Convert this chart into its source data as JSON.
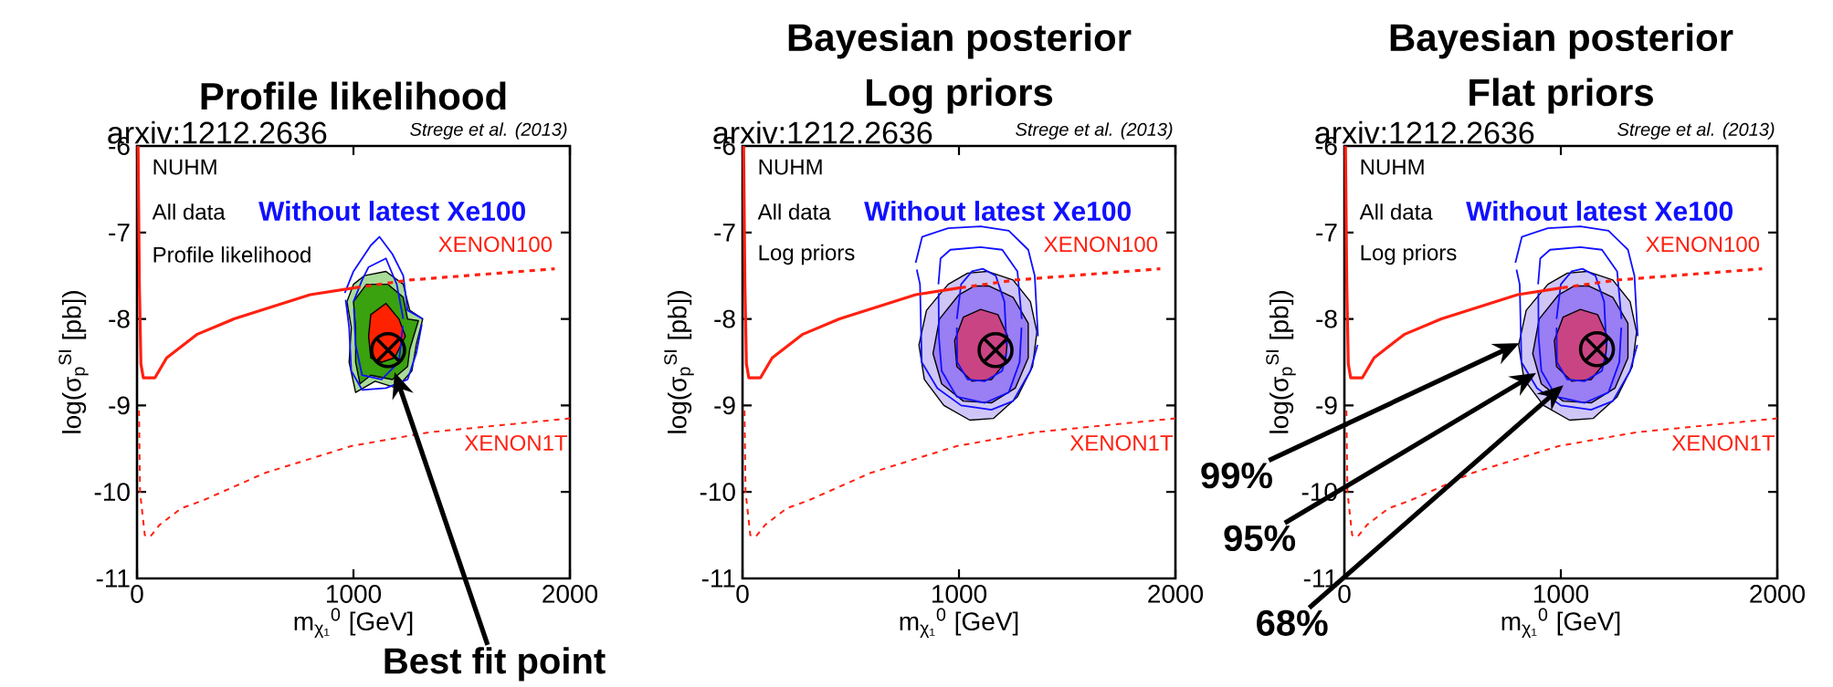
{
  "chart_data": [
    {
      "type": "line",
      "title": "Profile likelihood",
      "xlabel": "m$_{χ₁}$$^{0}$ [GeV]",
      "ylabel": "log(σ$_{p}$$^{SI}$ [pb])",
      "xlim": [
        0,
        2000
      ],
      "ylim": [
        -11,
        -6
      ],
      "xticks": [
        0,
        1000,
        2000
      ],
      "yticks": [
        -11,
        -10,
        -9,
        -8,
        -7,
        -6
      ],
      "series": [
        {
          "type": "area",
          "color": "#a9dc98",
          "x": [
            1050,
            1150,
            1230,
            1260,
            1320,
            1290,
            1270,
            1200,
            1100,
            1010,
            980,
            990,
            970,
            1000
          ],
          "values": [
            -7.5,
            -7.45,
            -7.6,
            -7.9,
            -8.0,
            -8.3,
            -8.6,
            -8.8,
            -8.72,
            -8.85,
            -8.5,
            -8.1,
            -7.8,
            -7.6
          ]
        },
        {
          "type": "area",
          "color": "#3aa10f",
          "x": [
            1060,
            1160,
            1230,
            1250,
            1300,
            1260,
            1250,
            1180,
            1080,
            1030,
            1010,
            1010,
            1000
          ],
          "values": [
            -7.6,
            -7.6,
            -7.75,
            -8.0,
            -8.02,
            -8.35,
            -8.55,
            -8.7,
            -8.65,
            -8.75,
            -8.5,
            -8.1,
            -7.8
          ]
        },
        {
          "type": "area",
          "color": "#ff2200",
          "x": [
            1080,
            1150,
            1210,
            1240,
            1190,
            1130,
            1080,
            1070
          ],
          "values": [
            -7.95,
            -7.82,
            -8.0,
            -8.2,
            -8.45,
            -8.5,
            -8.45,
            -8.2
          ]
        },
        {
          "color": "#1010ff",
          "x": [
            960,
            1000,
            1040,
            1080,
            1120,
            1180,
            1230,
            1250,
            1320
          ],
          "values": [
            -7.7,
            -7.45,
            -7.3,
            -7.15,
            -7.05,
            -7.25,
            -7.5,
            -7.9,
            -8.0
          ]
        },
        {
          "color": "#1010ff",
          "x": [
            964,
            980,
            990,
            1040,
            1150,
            1250,
            1290,
            1316
          ],
          "values": [
            -7.78,
            -8.1,
            -8.6,
            -8.82,
            -8.8,
            -8.7,
            -8.4,
            -8.06
          ]
        },
        {
          "color": "#1010ff",
          "x": [
            1000,
            1040,
            1070,
            1150,
            1200,
            1230
          ],
          "values": [
            -7.8,
            -7.55,
            -7.4,
            -7.3,
            -7.6,
            -8.0
          ]
        },
        {
          "color": "#1010ff",
          "x": [
            1002,
            1010,
            1040,
            1130,
            1210,
            1228
          ],
          "values": [
            -7.88,
            -8.3,
            -8.65,
            -8.7,
            -8.5,
            -8.08
          ]
        },
        {
          "color": "#ff2010",
          "line_style": "solid",
          "x": [
            5,
            11,
            18,
            29,
            50,
            83,
            137,
            276,
            448,
            800,
            1007
          ],
          "values": [
            -6.0,
            -7.6,
            -8.52,
            -8.68,
            -8.68,
            -8.68,
            -8.45,
            -8.18,
            -8.0,
            -7.72,
            -7.64
          ]
        },
        {
          "name": "XENON100",
          "color": "#ff2010",
          "line_style": "dashed",
          "x": [
            1007,
            1260,
            1930
          ],
          "values": [
            -7.64,
            -7.55,
            -7.42
          ]
        },
        {
          "name": "XENON1T",
          "color": "#ff2010",
          "line_style": "dashed",
          "x": [
            9,
            14,
            36,
            60,
            105,
            204,
            303,
            592,
            989,
            1350,
            2000
          ],
          "values": [
            -9.06,
            -10.0,
            -10.5,
            -10.52,
            -10.38,
            -10.19,
            -10.1,
            -9.78,
            -9.47,
            -9.31,
            -9.15
          ]
        },
        {
          "type": "scatter",
          "color": "#000000",
          "marker": "cross",
          "x": [
            1160
          ],
          "values": [
            -8.36
          ]
        }
      ],
      "annotations": [
        "arxiv:1212.2636",
        "Strege et al. (2013)",
        "NUHM",
        "All data",
        "Profile likelihood",
        "Without latest Xe100",
        "Best fit point"
      ]
    },
    {
      "type": "line",
      "title": "Bayesian posterior",
      "subtitle": "Log priors",
      "xlabel": "m$_{χ₁}$$^{0}$ [GeV]",
      "ylabel": "log(σ$_{p}$$^{SI}$ [pb])",
      "xlim": [
        0,
        2000
      ],
      "ylim": [
        -11,
        -6
      ],
      "xticks": [
        0,
        1000,
        2000
      ],
      "yticks": [
        -11,
        -10,
        -9,
        -8,
        -7,
        -6
      ],
      "series": [
        {
          "type": "area",
          "color": "#cfc6f7",
          "x": [
            1130,
            1250,
            1330,
            1360,
            1340,
            1270,
            1160,
            1050,
            930,
            840,
            815,
            850,
            950,
            1040
          ],
          "values": [
            -7.45,
            -7.55,
            -7.8,
            -8.15,
            -8.55,
            -8.9,
            -9.15,
            -9.17,
            -9.0,
            -8.7,
            -8.3,
            -7.9,
            -7.6,
            -7.47
          ]
        },
        {
          "type": "area",
          "color": "#9a7ef4",
          "x": [
            1140,
            1250,
            1320,
            1320,
            1260,
            1150,
            1020,
            920,
            880,
            910,
            1000,
            1070
          ],
          "values": [
            -7.62,
            -7.75,
            -8.05,
            -8.45,
            -8.8,
            -8.97,
            -8.95,
            -8.75,
            -8.4,
            -8.0,
            -7.72,
            -7.62
          ]
        },
        {
          "type": "area",
          "color": "#c94482",
          "x": [
            1100,
            1180,
            1225,
            1215,
            1150,
            1060,
            990,
            980,
            1020
          ],
          "values": [
            -7.89,
            -7.95,
            -8.2,
            -8.5,
            -8.7,
            -8.72,
            -8.55,
            -8.25,
            -7.98
          ]
        },
        {
          "color": "#1010ff",
          "x": [
            800,
            830,
            950,
            1100,
            1230,
            1320,
            1350,
            1365
          ],
          "values": [
            -7.35,
            -7.05,
            -6.95,
            -6.93,
            -6.98,
            -7.2,
            -7.5,
            -8.2
          ]
        },
        {
          "color": "#1010ff",
          "x": [
            805,
            820,
            828,
            900,
            1010,
            1150,
            1250,
            1330,
            1363
          ],
          "values": [
            -7.43,
            -7.6,
            -8.5,
            -8.8,
            -9.0,
            -9.05,
            -8.95,
            -8.6,
            -8.3
          ]
        },
        {
          "color": "#1010ff",
          "x": [
            905,
            915,
            960,
            1100,
            1200,
            1270,
            1290
          ],
          "values": [
            -7.6,
            -7.3,
            -7.2,
            -7.17,
            -7.2,
            -7.45,
            -8.0
          ]
        },
        {
          "color": "#1010ff",
          "x": [
            906,
            907,
            920,
            990,
            1120,
            1230,
            1280,
            1289
          ],
          "values": [
            -7.7,
            -8.2,
            -8.6,
            -8.9,
            -8.97,
            -8.85,
            -8.5,
            -8.1
          ]
        },
        {
          "color": "#1010ff",
          "x": [
            990,
            1010,
            1060,
            1110,
            1170,
            1210,
            1220
          ],
          "values": [
            -8.0,
            -7.6,
            -7.45,
            -7.42,
            -7.5,
            -7.8,
            -8.3
          ]
        },
        {
          "color": "#1010ff",
          "x": [
            990,
            992,
            1040,
            1120,
            1200,
            1218
          ],
          "values": [
            -8.1,
            -8.5,
            -8.7,
            -8.72,
            -8.6,
            -8.4
          ]
        },
        {
          "color": "#ff2010",
          "line_style": "solid",
          "x": [
            5,
            11,
            18,
            29,
            50,
            83,
            137,
            276,
            448,
            800,
            1007
          ],
          "values": [
            -6.0,
            -7.6,
            -8.52,
            -8.68,
            -8.68,
            -8.68,
            -8.45,
            -8.18,
            -8.0,
            -7.72,
            -7.64
          ]
        },
        {
          "name": "XENON100",
          "color": "#ff2010",
          "line_style": "dashed",
          "x": [
            1007,
            1260,
            1930
          ],
          "values": [
            -7.64,
            -7.55,
            -7.42
          ]
        },
        {
          "name": "XENON1T",
          "color": "#ff2010",
          "line_style": "dashed",
          "x": [
            9,
            14,
            36,
            60,
            105,
            204,
            303,
            592,
            989,
            1350,
            2000
          ],
          "values": [
            -9.06,
            -10.0,
            -10.5,
            -10.52,
            -10.38,
            -10.19,
            -10.1,
            -9.78,
            -9.47,
            -9.31,
            -9.15
          ]
        },
        {
          "type": "scatter",
          "color": "#000000",
          "marker": "cross",
          "x": [
            1169
          ],
          "values": [
            -8.36
          ]
        }
      ],
      "annotations": [
        "arxiv:1212.2636",
        "Strege et al. (2013)",
        "NUHM",
        "All data",
        "Log priors",
        "Without latest Xe100"
      ]
    },
    {
      "type": "line",
      "title": "Bayesian posterior",
      "subtitle": "Flat priors",
      "xlabel": "m$_{χ₁}$$^{0}$ [GeV]",
      "ylabel": "log(σ$_{p}$$^{SI}$ [pb])",
      "xlim": [
        0,
        2000
      ],
      "ylim": [
        -11,
        -6
      ],
      "xticks": [
        0,
        1000,
        2000
      ],
      "yticks": [
        -11,
        -10,
        -9,
        -8,
        -7,
        -6
      ],
      "series": [
        {
          "type": "area",
          "color": "#cfc6f7",
          "x": [
            1120,
            1240,
            1320,
            1350,
            1330,
            1260,
            1150,
            1040,
            920,
            830,
            805,
            840,
            940,
            1030
          ],
          "values": [
            -7.45,
            -7.55,
            -7.8,
            -8.15,
            -8.55,
            -8.9,
            -9.15,
            -9.17,
            -9.0,
            -8.7,
            -8.3,
            -7.9,
            -7.6,
            -7.47
          ]
        },
        {
          "type": "area",
          "color": "#9a7ef4",
          "x": [
            1130,
            1240,
            1310,
            1310,
            1250,
            1140,
            1010,
            910,
            870,
            900,
            990,
            1060
          ],
          "values": [
            -7.62,
            -7.75,
            -8.05,
            -8.45,
            -8.8,
            -8.97,
            -8.95,
            -8.75,
            -8.4,
            -8.0,
            -7.72,
            -7.62
          ]
        },
        {
          "type": "area",
          "color": "#c94482",
          "x": [
            1090,
            1170,
            1215,
            1205,
            1140,
            1050,
            980,
            970,
            1010
          ],
          "values": [
            -7.89,
            -7.95,
            -8.2,
            -8.5,
            -8.7,
            -8.72,
            -8.55,
            -8.25,
            -7.98
          ]
        },
        {
          "color": "#1010ff",
          "x": [
            790,
            820,
            940,
            1090,
            1220,
            1310,
            1340,
            1355
          ],
          "values": [
            -7.35,
            -7.05,
            -6.95,
            -6.93,
            -6.98,
            -7.2,
            -7.5,
            -8.2
          ]
        },
        {
          "color": "#1010ff",
          "x": [
            795,
            810,
            818,
            890,
            1000,
            1140,
            1240,
            1320,
            1353
          ],
          "values": [
            -7.43,
            -7.6,
            -8.5,
            -8.8,
            -9.0,
            -9.05,
            -8.95,
            -8.6,
            -8.3
          ]
        },
        {
          "color": "#1010ff",
          "x": [
            895,
            905,
            950,
            1090,
            1190,
            1260,
            1280
          ],
          "values": [
            -7.6,
            -7.3,
            -7.2,
            -7.17,
            -7.2,
            -7.45,
            -8.0
          ]
        },
        {
          "color": "#1010ff",
          "x": [
            896,
            897,
            910,
            980,
            1110,
            1220,
            1270,
            1279
          ],
          "values": [
            -7.7,
            -8.2,
            -8.6,
            -8.9,
            -8.97,
            -8.85,
            -8.5,
            -8.1
          ]
        },
        {
          "color": "#1010ff",
          "x": [
            980,
            1000,
            1050,
            1100,
            1160,
            1200,
            1210
          ],
          "values": [
            -8.0,
            -7.6,
            -7.45,
            -7.42,
            -7.5,
            -7.8,
            -8.3
          ]
        },
        {
          "color": "#1010ff",
          "x": [
            980,
            982,
            1030,
            1110,
            1190,
            1208
          ],
          "values": [
            -8.1,
            -8.5,
            -8.7,
            -8.72,
            -8.6,
            -8.4
          ]
        },
        {
          "color": "#ff2010",
          "line_style": "solid",
          "x": [
            5,
            11,
            18,
            29,
            50,
            83,
            137,
            276,
            448,
            800,
            1007
          ],
          "values": [
            -6.0,
            -7.6,
            -8.52,
            -8.68,
            -8.68,
            -8.68,
            -8.45,
            -8.18,
            -8.0,
            -7.72,
            -7.64
          ]
        },
        {
          "name": "XENON100",
          "color": "#ff2010",
          "line_style": "dashed",
          "x": [
            1007,
            1260,
            1930
          ],
          "values": [
            -7.64,
            -7.55,
            -7.42
          ]
        },
        {
          "name": "XENON1T",
          "color": "#ff2010",
          "line_style": "dashed",
          "x": [
            9,
            14,
            36,
            60,
            105,
            204,
            303,
            592,
            989,
            1350,
            2000
          ],
          "values": [
            -9.06,
            -10.0,
            -10.5,
            -10.52,
            -10.38,
            -10.19,
            -10.1,
            -9.78,
            -9.47,
            -9.31,
            -9.15
          ]
        },
        {
          "type": "scatter",
          "color": "#000000",
          "marker": "cross",
          "x": [
            1167
          ],
          "values": [
            -8.35
          ]
        }
      ],
      "annotations": [
        "arxiv:1212.2636",
        "Strege et al. (2013)",
        "NUHM",
        "All data",
        "Log priors",
        "Without latest Xe100",
        "99%",
        "95%",
        "68%"
      ]
    }
  ]
}
